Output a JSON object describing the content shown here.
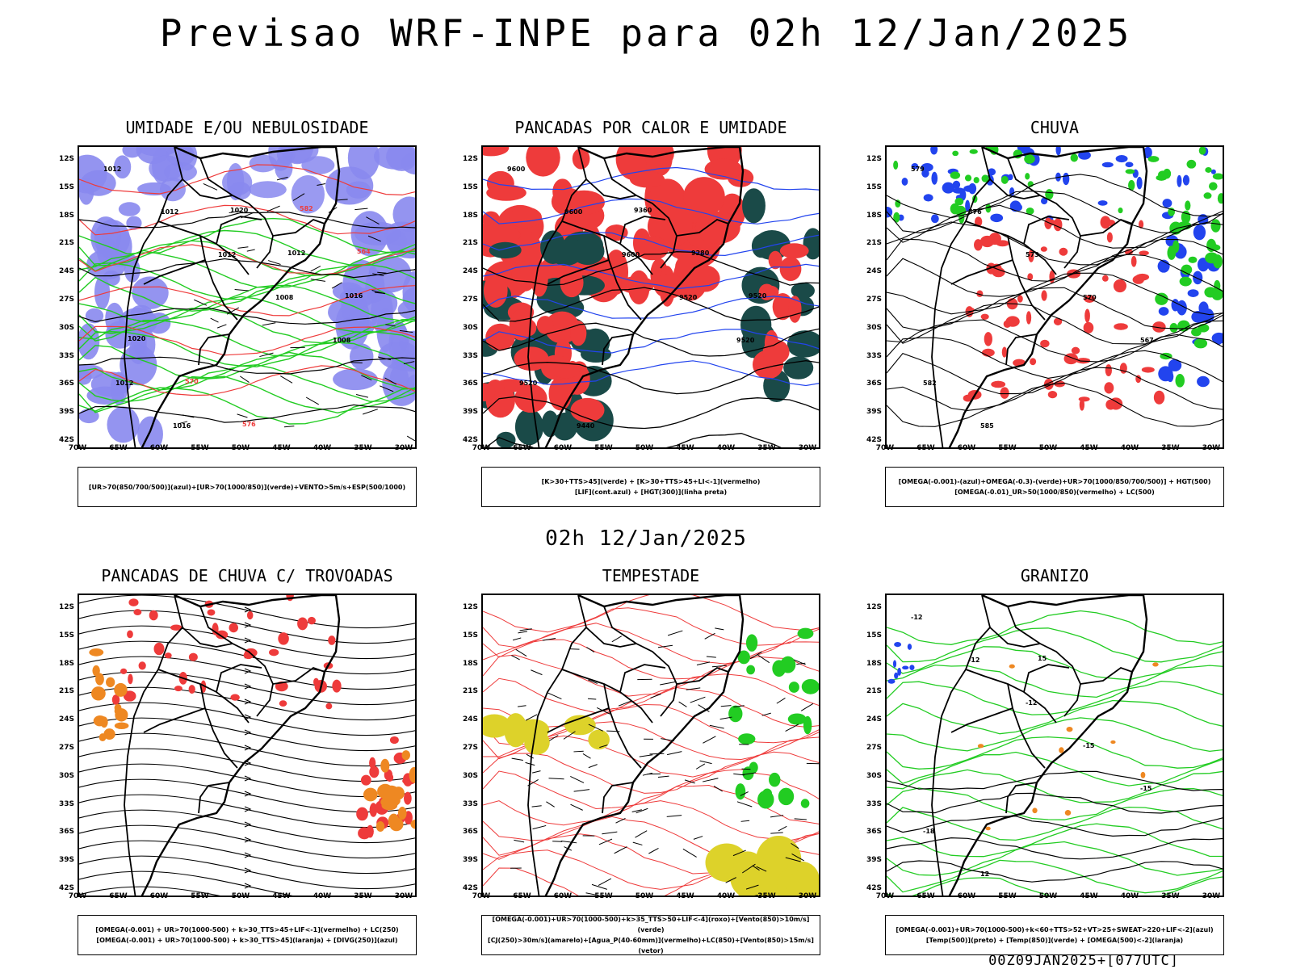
{
  "title": "Previsao WRF-INPE  para 02h 12/Jan/2025",
  "mid_title": "02h 12/Jan/2025",
  "footer": "00Z09JAN2025+[077UTC]",
  "lat_labels": [
    "12S",
    "15S",
    "18S",
    "21S",
    "24S",
    "27S",
    "30S",
    "33S",
    "36S",
    "39S",
    "42S"
  ],
  "lon_labels": [
    "70W",
    "65W",
    "60W",
    "55W",
    "50W",
    "45W",
    "40W",
    "35W",
    "30W"
  ],
  "colors": {
    "blue_fill": "#8888ee",
    "green_contour": "#22cc22",
    "red": "#ee3b3b",
    "dark_teal": "#1a4a48",
    "orange": "#ee8822",
    "yellow": "#ddd22a",
    "blue": "#2244ee"
  },
  "panels": [
    {
      "title": "UMIDADE E/OU NEBULOSIDADE",
      "legend": [
        "[UR>70(850/700/500)](azul)+[UR>70(1000/850)](verde)+VENTO>5m/s+ESP(500/1000)"
      ],
      "contour_labels": [
        "1012",
        "1012",
        "1012",
        "1008",
        "1008",
        "1012",
        "1016",
        "1020",
        "1012",
        "1016",
        "1020",
        "570",
        "576",
        "582",
        "564"
      ]
    },
    {
      "title": "PANCADAS POR CALOR E UMIDADE",
      "legend": [
        "[K>30+TTS>45](verde) + [K>30+TTS>45+LI<-1](vermelho)",
        "[LIF](cont.azul) + [HGT(300)](linha preta)"
      ],
      "contour_labels": [
        "9600",
        "9600",
        "9600",
        "9520",
        "9520",
        "9520",
        "9440",
        "9360",
        "9280",
        "9520"
      ]
    },
    {
      "title": "CHUVA",
      "legend": [
        "[OMEGA(-0.001)-(azul)+OMEGA(-0.3)-(verde)+UR>70(1000/850/700/500)] + HGT(500)",
        "[OMEGA(-0.01)_UR>50(1000/850)(vermelho) + LC(500)"
      ],
      "contour_labels": [
        "579",
        "576",
        "573",
        "570",
        "567",
        "582",
        "585"
      ]
    },
    {
      "title": "PANCADAS DE CHUVA C/ TROVOADAS",
      "legend": [
        "[OMEGA(-0.001) + UR>70(1000-500) + k>30_TTS>45+LIF<-1](vermelho) + LC(250)",
        "[OMEGA(-0.001) + UR>70(1000-500) + k>30_TTS>45](laranja) + [DIVG(250)](azul)"
      ],
      "contour_labels": []
    },
    {
      "title": "TEMPESTADE",
      "legend": [
        "[OMEGA(-0.001)+UR>70(1000-500)+k>35_TTS>50+LIF<-4](roxo)+[Vento(850)>10m/s](verde)",
        "[CJ(250)>30m/s](amarelo)+[Agua_P(40-60mm)](vermelho)+LC(850)+[Vento(850)>15m/s](vetor)"
      ],
      "contour_labels": []
    },
    {
      "title": "GRANIZO",
      "legend": [
        "[OMEGA(-0.001)+UR>70(1000-500)+k<60+TTS>52+VT>25+SWEAT>220+LIF<-2](azul)",
        "[Temp(500)](preto) + [Temp(850)](verde) + [OMEGA(500)<-2](laranja)"
      ],
      "contour_labels": [
        "-12",
        "-12",
        "-12",
        "-15",
        "-15",
        "-18",
        "12",
        "15"
      ]
    }
  ]
}
